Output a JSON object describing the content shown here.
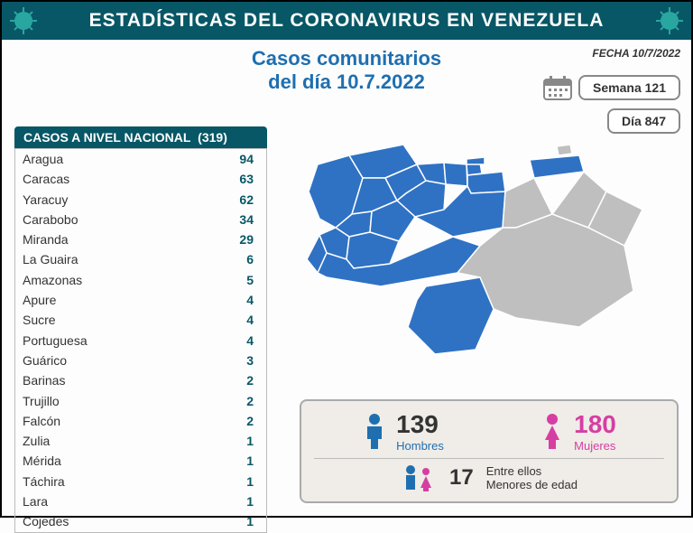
{
  "header": {
    "title": "ESTADÍSTICAS DEL CORONAVIRUS EN VENEZUELA"
  },
  "subtitle_line1": "Casos comunitarios",
  "subtitle_line2": "del día 10.7.2022",
  "date_label": "FECHA 10/7/2022",
  "week": {
    "label": "Semana",
    "value": "121"
  },
  "day": {
    "label": "Día",
    "value": "847"
  },
  "table": {
    "title": "CASOS A NIVEL NACIONAL",
    "total": "(319)",
    "rows": [
      {
        "name": "Aragua",
        "value": "94"
      },
      {
        "name": "Caracas",
        "value": "63"
      },
      {
        "name": "Yaracuy",
        "value": "62"
      },
      {
        "name": "Carabobo",
        "value": "34"
      },
      {
        "name": "Miranda",
        "value": "29"
      },
      {
        "name": "La Guaira",
        "value": "6"
      },
      {
        "name": "Amazonas",
        "value": "5"
      },
      {
        "name": "Apure",
        "value": "4"
      },
      {
        "name": "Sucre",
        "value": "4"
      },
      {
        "name": "Portuguesa",
        "value": "4"
      },
      {
        "name": "Guárico",
        "value": "3"
      },
      {
        "name": "Barinas",
        "value": "2"
      },
      {
        "name": "Trujillo",
        "value": "2"
      },
      {
        "name": "Falcón",
        "value": "2"
      },
      {
        "name": "Zulia",
        "value": "1"
      },
      {
        "name": "Mérida",
        "value": "1"
      },
      {
        "name": "Táchira",
        "value": "1"
      },
      {
        "name": "Lara",
        "value": "1"
      },
      {
        "name": "Cojedes",
        "value": "1"
      }
    ]
  },
  "map": {
    "type": "choropleth-map",
    "active_color": "#2f72c4",
    "inactive_color": "#bfbfbf",
    "stroke": "#ffffff"
  },
  "stats": {
    "men": {
      "value": "139",
      "label": "Hombres",
      "color": "#1f6fb0"
    },
    "women": {
      "value": "180",
      "label": "Mujeres",
      "color": "#d63ea3"
    },
    "minors": {
      "value": "17",
      "pre": "Entre ellos",
      "label": "Menores de edad"
    }
  },
  "colors": {
    "header_bg": "#075766",
    "accent": "#1f6fb0",
    "box_bg": "#f0ece7"
  }
}
